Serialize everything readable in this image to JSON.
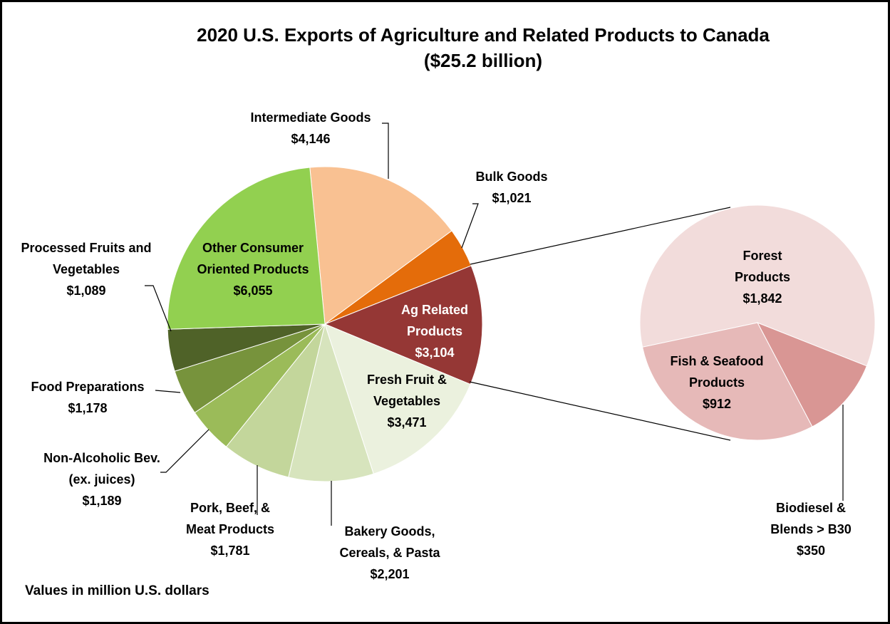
{
  "chart_data": [
    {
      "type": "pie",
      "title": "2020 U.S. Exports of Agriculture and Related Products to Canada ($25.2 billion)",
      "note": "Values in million U.S. dollars",
      "categories": [
        "Intermediate Goods",
        "Bulk Goods",
        "Ag Related Products",
        "Fresh Fruit & Vegetables",
        "Bakery Goods, Cereals, & Pasta",
        "Pork, Beef, & Meat Products",
        "Non-Alcoholic Bev. (ex. juices)",
        "Food Preparations",
        "Processed Fruits and Vegetables",
        "Other Consumer Oriented Products"
      ],
      "values": [
        4146,
        1021,
        3104,
        3471,
        2201,
        1781,
        1189,
        1178,
        1089,
        6055
      ],
      "value_labels": [
        "$4,146",
        "$1,021",
        "$3,104",
        "$3,471",
        "$2,201",
        "$1,781",
        "$1,189",
        "$1,178",
        "$1,089",
        "$6,055"
      ],
      "colors": [
        "#f9c192",
        "#e46c0a",
        "#953735",
        "#ebf1de",
        "#d7e4bd",
        "#c3d69b",
        "#9bbb59",
        "#77933c",
        "#4f6228",
        "#92d050"
      ]
    },
    {
      "type": "pie",
      "categories": [
        "Forest Products",
        "Biodiesel & Blends > B30",
        "Fish & Seafood Products"
      ],
      "values": [
        1842,
        350,
        912
      ],
      "value_labels": [
        "$1,842",
        "$350",
        "$912"
      ],
      "colors": [
        "#f2dcdb",
        "#d99694",
        "#e6b9b8"
      ]
    }
  ]
}
